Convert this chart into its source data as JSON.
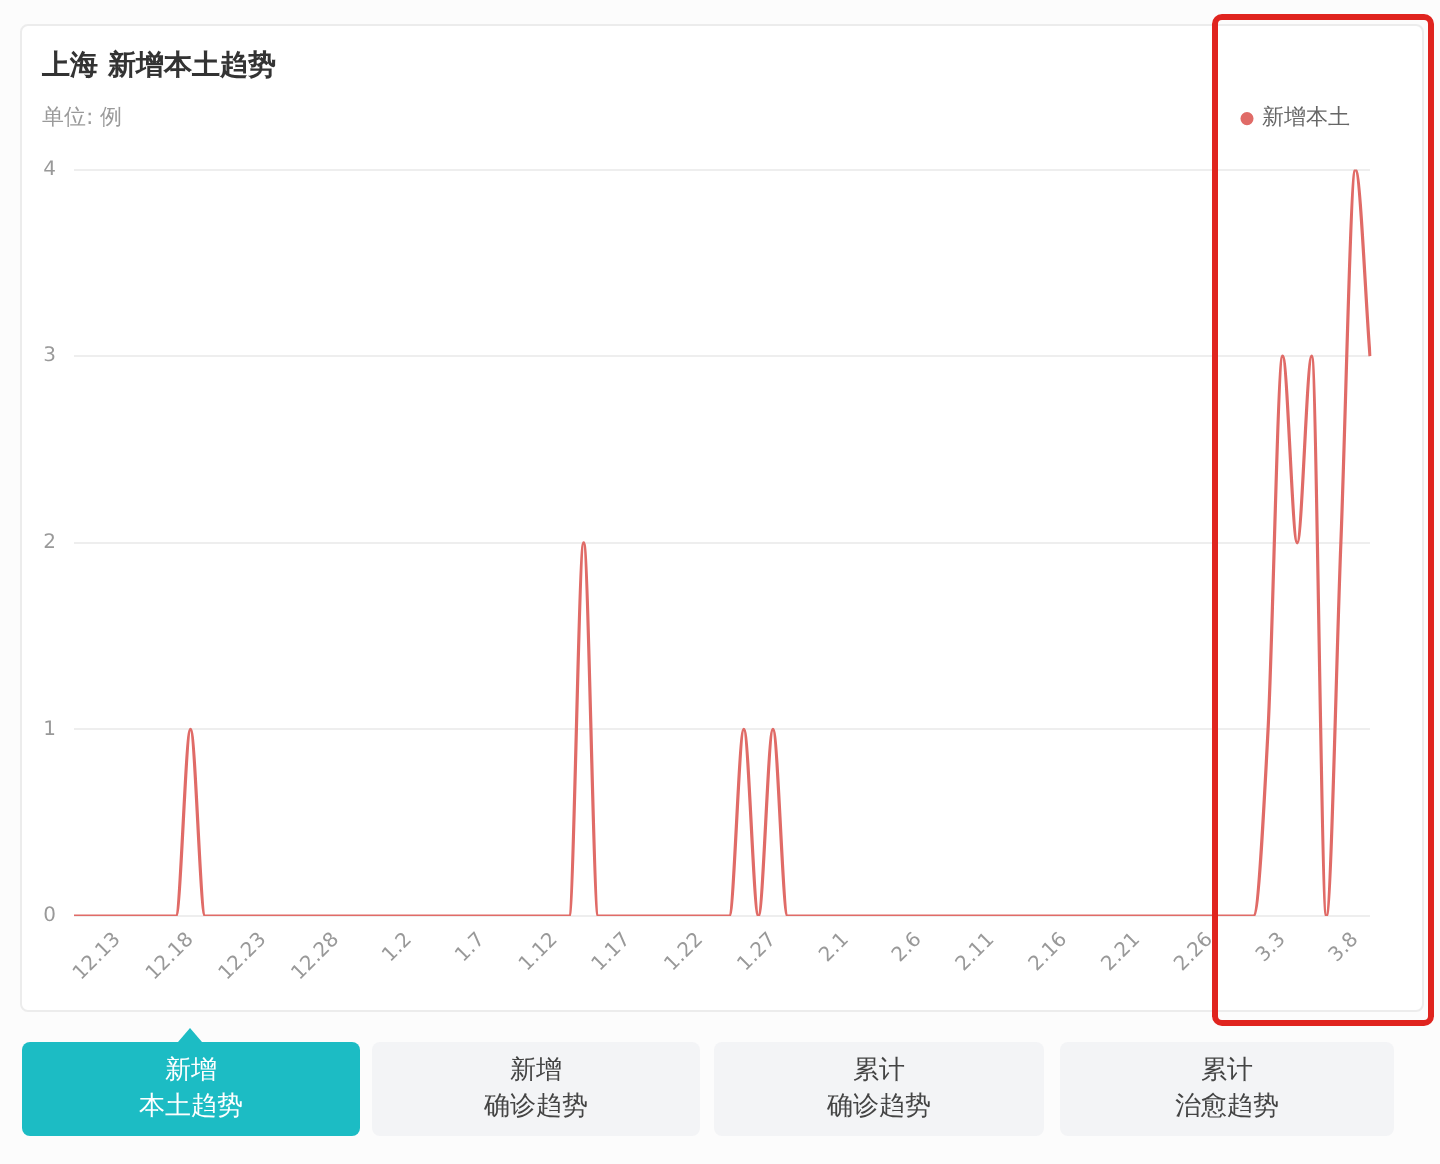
{
  "chart_data": {
    "type": "line",
    "title": "上海 新增本土趋势",
    "ylabel": "单位: 例",
    "categories": [
      null,
      null,
      null,
      "12.13",
      null,
      null,
      null,
      null,
      "12.18",
      null,
      null,
      null,
      null,
      "12.23",
      null,
      null,
      null,
      null,
      "12.28",
      null,
      null,
      null,
      null,
      "1.2",
      null,
      null,
      null,
      null,
      "1.7",
      null,
      null,
      null,
      null,
      "1.12",
      null,
      null,
      null,
      null,
      "1.17",
      null,
      null,
      null,
      null,
      "1.22",
      null,
      null,
      null,
      null,
      "1.27",
      null,
      null,
      null,
      null,
      "2.1",
      null,
      null,
      null,
      null,
      "2.6",
      null,
      null,
      null,
      null,
      "2.11",
      null,
      null,
      null,
      null,
      "2.16",
      null,
      null,
      null,
      null,
      "2.21",
      null,
      null,
      null,
      null,
      "2.26",
      null,
      null,
      null,
      null,
      "3.3",
      null,
      null,
      null,
      null,
      "3.8",
      null
    ],
    "series": [
      {
        "name": "新增本土",
        "color": "#e06b67",
        "values": [
          0,
          0,
          0,
          0,
          0,
          0,
          0,
          0,
          1,
          0,
          0,
          0,
          0,
          0,
          0,
          0,
          0,
          0,
          0,
          0,
          0,
          0,
          0,
          0,
          0,
          0,
          0,
          0,
          0,
          0,
          0,
          0,
          0,
          0,
          0,
          2,
          0,
          0,
          0,
          0,
          0,
          0,
          0,
          0,
          0,
          0,
          1,
          0,
          1,
          0,
          0,
          0,
          0,
          0,
          0,
          0,
          0,
          0,
          0,
          0,
          0,
          0,
          0,
          0,
          0,
          0,
          0,
          0,
          0,
          0,
          0,
          0,
          0,
          0,
          0,
          0,
          0,
          0,
          0,
          0,
          0,
          0,
          1,
          3,
          2,
          3,
          0,
          2,
          4,
          3
        ]
      }
    ],
    "ylim": [
      0,
      4
    ],
    "yticks": [
      0,
      1,
      2,
      3,
      4
    ],
    "grid": "y",
    "legend": "top right",
    "marker": "none",
    "annotations": [
      "新增",
      "本土趋势",
      "新增",
      "确诊趋势",
      "累计",
      "确诊趋势",
      "累计",
      "治愈趋势"
    ]
  }
}
